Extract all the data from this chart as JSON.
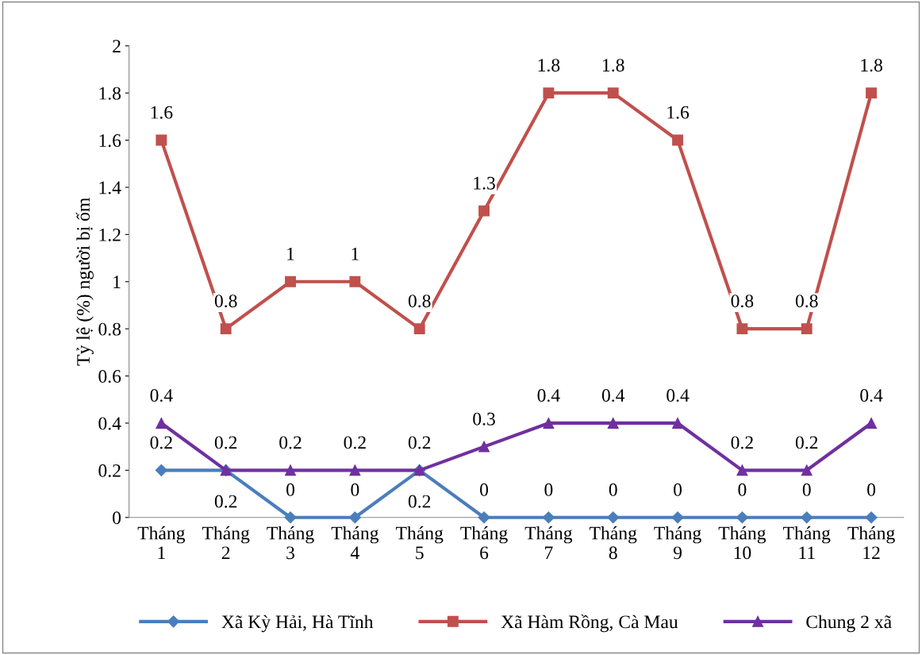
{
  "chart_data": {
    "type": "line",
    "ylabel": "Tỷ lệ (%) người bị ốm",
    "categories": [
      "Tháng 1",
      "Tháng 2",
      "Tháng 3",
      "Tháng 4",
      "Tháng 5",
      "Tháng 6",
      "Tháng 7",
      "Tháng 8",
      "Tháng 9",
      "Tháng 10",
      "Tháng 11",
      "Tháng 12"
    ],
    "series": [
      {
        "name": "Xã Kỳ Hải, Hà Tĩnh",
        "color": "#4a7ebb",
        "marker": "diamond",
        "values": [
          0.2,
          0.2,
          0,
          0,
          0.2,
          0,
          0,
          0,
          0,
          0,
          0,
          0
        ]
      },
      {
        "name": "Xã Hàm Rồng, Cà Mau",
        "color": "#c0504d",
        "marker": "square",
        "values": [
          1.6,
          0.8,
          1,
          1,
          0.8,
          1.3,
          1.8,
          1.8,
          1.6,
          0.8,
          0.8,
          1.8
        ]
      },
      {
        "name": "Chung 2 xã",
        "color": "#7030a0",
        "marker": "triangle",
        "values": [
          0.4,
          0.2,
          0.2,
          0.2,
          0.2,
          0.3,
          0.4,
          0.4,
          0.4,
          0.2,
          0.2,
          0.4
        ]
      }
    ],
    "ylim": [
      0,
      2
    ],
    "yticks": [
      0,
      0.2,
      0.4,
      0.6,
      0.8,
      1,
      1.2,
      1.4,
      1.6,
      1.8,
      2
    ],
    "grid": false,
    "legend": "bottom",
    "data_labels": true,
    "line_style": "solid"
  }
}
